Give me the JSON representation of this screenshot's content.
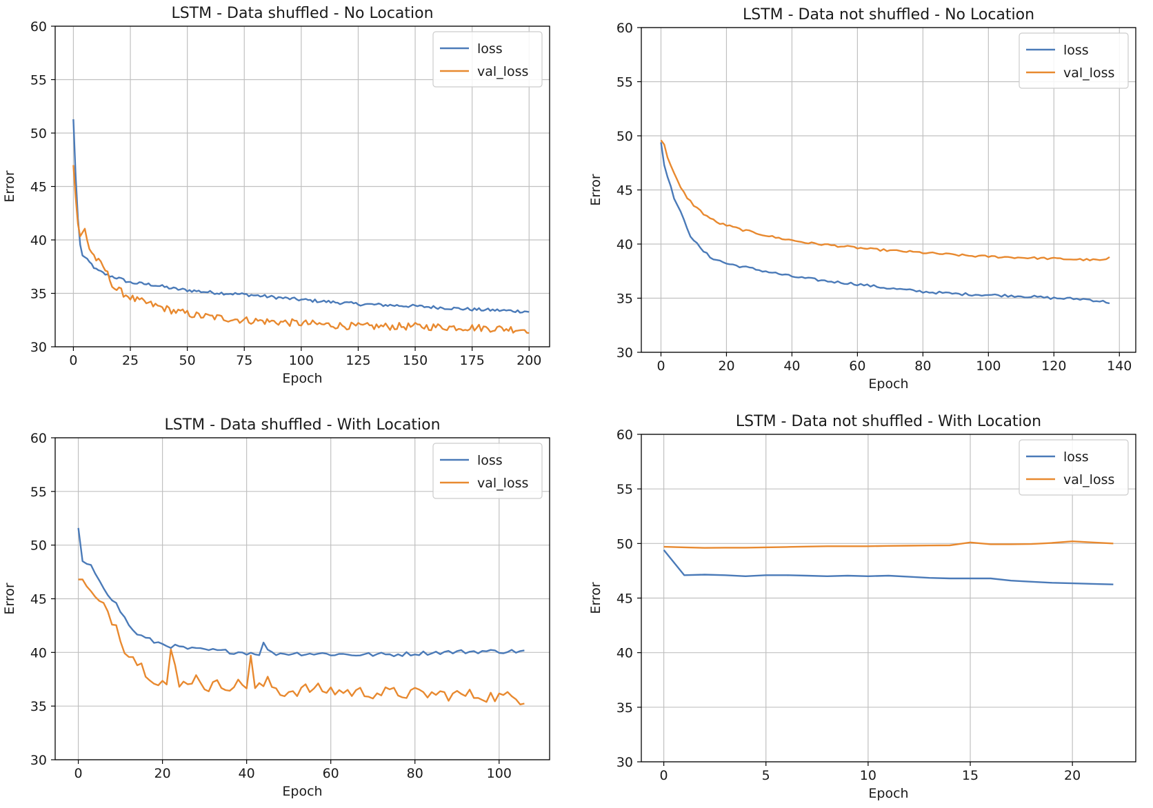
{
  "colors": {
    "loss": "#4a7ab8",
    "val_loss": "#e8892f",
    "grid": "#c0c0c0",
    "axis": "#000000"
  },
  "chart_data": [
    {
      "type": "line",
      "title": "LSTM - Data shuffled - No Location",
      "xlabel": "Epoch",
      "ylabel": "Error",
      "xlim": [
        -8,
        209
      ],
      "ylim": [
        30,
        60
      ],
      "xticks": [
        0,
        25,
        50,
        75,
        100,
        125,
        150,
        175,
        200
      ],
      "yticks": [
        30,
        35,
        40,
        45,
        50,
        55,
        60
      ],
      "grid": true,
      "legend": "upper right",
      "series": [
        {
          "name": "loss",
          "x_max": 200,
          "noise": 0.15,
          "points": [
            [
              0,
              51.3
            ],
            [
              1,
              46
            ],
            [
              2,
              42
            ],
            [
              3,
              39.5
            ],
            [
              4,
              38.6
            ],
            [
              6,
              38.1
            ],
            [
              8,
              37.7
            ],
            [
              10,
              37.2
            ],
            [
              15,
              36.7
            ],
            [
              20,
              36.4
            ],
            [
              25,
              36.0
            ],
            [
              35,
              35.8
            ],
            [
              45,
              35.4
            ],
            [
              60,
              35.1
            ],
            [
              75,
              34.9
            ],
            [
              100,
              34.4
            ],
            [
              125,
              34.0
            ],
            [
              150,
              33.8
            ],
            [
              175,
              33.5
            ],
            [
              200,
              33.3
            ]
          ]
        },
        {
          "name": "val_loss",
          "x_max": 200,
          "noise": 0.35,
          "points": [
            [
              0,
              47
            ],
            [
              1,
              44
            ],
            [
              2,
              41.5
            ],
            [
              3,
              40.2
            ],
            [
              5,
              41
            ],
            [
              7,
              39.2
            ],
            [
              10,
              38.2
            ],
            [
              14,
              37.2
            ],
            [
              18,
              35.5
            ],
            [
              22,
              35.0
            ],
            [
              27,
              34.4
            ],
            [
              35,
              33.9
            ],
            [
              45,
              33.3
            ],
            [
              55,
              32.9
            ],
            [
              75,
              32.5
            ],
            [
              100,
              32.2
            ],
            [
              125,
              31.9
            ],
            [
              150,
              31.9
            ],
            [
              175,
              31.8
            ],
            [
              200,
              31.6
            ]
          ]
        }
      ]
    },
    {
      "type": "line",
      "title": "LSTM - Data not shuffled - No Location",
      "xlabel": "Epoch",
      "ylabel": "Error",
      "xlim": [
        -6,
        145
      ],
      "ylim": [
        30,
        60
      ],
      "xticks": [
        0,
        20,
        40,
        60,
        80,
        100,
        120,
        140
      ],
      "yticks": [
        30,
        35,
        40,
        45,
        50,
        55,
        60
      ],
      "grid": true,
      "legend": "upper right",
      "series": [
        {
          "name": "loss",
          "x_max": 137,
          "noise": 0.12,
          "points": [
            [
              0,
              49.4
            ],
            [
              1,
              47.3
            ],
            [
              2,
              46.2
            ],
            [
              4,
              44.3
            ],
            [
              7,
              42.2
            ],
            [
              9,
              40.8
            ],
            [
              12,
              39.6
            ],
            [
              15,
              38.8
            ],
            [
              20,
              38.2
            ],
            [
              30,
              37.6
            ],
            [
              40,
              37.0
            ],
            [
              50,
              36.6
            ],
            [
              60,
              36.3
            ],
            [
              70,
              35.9
            ],
            [
              80,
              35.6
            ],
            [
              90,
              35.4
            ],
            [
              100,
              35.3
            ],
            [
              110,
              35.2
            ],
            [
              120,
              35.0
            ],
            [
              130,
              34.9
            ],
            [
              137,
              34.6
            ]
          ]
        },
        {
          "name": "val_loss",
          "x_max": 137,
          "noise": 0.1,
          "points": [
            [
              0,
              49.6
            ],
            [
              1,
              49.2
            ],
            [
              2,
              48.0
            ],
            [
              4,
              46.5
            ],
            [
              6,
              45.2
            ],
            [
              8,
              44.3
            ],
            [
              10,
              43.6
            ],
            [
              13,
              42.8
            ],
            [
              17,
              42.0
            ],
            [
              25,
              41.3
            ],
            [
              35,
              40.6
            ],
            [
              45,
              40.1
            ],
            [
              55,
              39.8
            ],
            [
              65,
              39.5
            ],
            [
              75,
              39.3
            ],
            [
              85,
              39.1
            ],
            [
              95,
              38.9
            ],
            [
              105,
              38.8
            ],
            [
              115,
              38.7
            ],
            [
              125,
              38.6
            ],
            [
              135,
              38.5
            ],
            [
              137,
              38.7
            ]
          ]
        }
      ]
    },
    {
      "type": "line",
      "title": "LSTM - Data shuffled - With Location",
      "xlabel": "Epoch",
      "ylabel": "Error",
      "xlim": [
        -5.5,
        112
      ],
      "ylim": [
        30,
        60
      ],
      "xticks": [
        0,
        20,
        40,
        60,
        80,
        100
      ],
      "yticks": [
        30,
        35,
        40,
        45,
        50,
        55,
        60
      ],
      "grid": true,
      "legend": "upper right",
      "series": [
        {
          "name": "loss",
          "x_max": 106,
          "noise": 0.2,
          "points": [
            [
              0,
              51.6
            ],
            [
              1,
              48.5
            ],
            [
              3,
              48.0
            ],
            [
              5,
              46.8
            ],
            [
              7,
              45.5
            ],
            [
              9,
              44.5
            ],
            [
              11,
              43.2
            ],
            [
              13,
              42.0
            ],
            [
              15,
              41.5
            ],
            [
              18,
              41.0
            ],
            [
              22,
              40.6
            ],
            [
              27,
              40.3
            ],
            [
              35,
              40.1
            ],
            [
              43,
              39.9
            ],
            [
              44,
              40.8
            ],
            [
              46,
              39.9
            ],
            [
              55,
              39.9
            ],
            [
              65,
              39.8
            ],
            [
              75,
              39.8
            ],
            [
              85,
              40.0
            ],
            [
              95,
              40.1
            ],
            [
              106,
              40.1
            ]
          ]
        },
        {
          "name": "val_loss",
          "x_max": 106,
          "noise": 0.6,
          "points": [
            [
              0,
              46.8
            ],
            [
              1,
              46.8
            ],
            [
              3,
              45.5
            ],
            [
              5,
              44.5
            ],
            [
              7,
              43.8
            ],
            [
              9,
              42.5
            ],
            [
              11,
              40.5
            ],
            [
              13,
              39.6
            ],
            [
              15,
              38.7
            ],
            [
              18,
              37.6
            ],
            [
              21,
              37.1
            ],
            [
              22,
              40.0
            ],
            [
              24,
              36.8
            ],
            [
              27,
              37.6
            ],
            [
              29,
              37.6
            ],
            [
              30,
              36.8
            ],
            [
              35,
              37.0
            ],
            [
              40,
              37.0
            ],
            [
              41,
              39.8
            ],
            [
              42,
              36.5
            ],
            [
              45,
              37.2
            ],
            [
              48,
              36.3
            ],
            [
              55,
              36.6
            ],
            [
              65,
              36.3
            ],
            [
              75,
              36.2
            ],
            [
              85,
              36.1
            ],
            [
              95,
              36.0
            ],
            [
              106,
              35.7
            ]
          ]
        }
      ]
    },
    {
      "type": "line",
      "title": "LSTM - Data not shuffled - With Location",
      "xlabel": "Epoch",
      "ylabel": "Error",
      "xlim": [
        -1.1,
        23.1
      ],
      "ylim": [
        30,
        60
      ],
      "xticks": [
        0,
        5,
        10,
        15,
        20
      ],
      "yticks": [
        30,
        35,
        40,
        45,
        50,
        55,
        60
      ],
      "grid": true,
      "legend": "upper right",
      "series": [
        {
          "name": "loss",
          "x_max": 22,
          "noise": 0,
          "points": [
            [
              0,
              49.4
            ],
            [
              1,
              47.1
            ],
            [
              2,
              47.15
            ],
            [
              3,
              47.1
            ],
            [
              4,
              47.0
            ],
            [
              5,
              47.1
            ],
            [
              6,
              47.1
            ],
            [
              7,
              47.05
            ],
            [
              8,
              47.0
            ],
            [
              9,
              47.05
            ],
            [
              10,
              47.0
            ],
            [
              11,
              47.05
            ],
            [
              12,
              46.95
            ],
            [
              13,
              46.85
            ],
            [
              14,
              46.8
            ],
            [
              15,
              46.8
            ],
            [
              16,
              46.8
            ],
            [
              17,
              46.6
            ],
            [
              18,
              46.5
            ],
            [
              19,
              46.4
            ],
            [
              20,
              46.35
            ],
            [
              21,
              46.3
            ],
            [
              22,
              46.25
            ]
          ]
        },
        {
          "name": "val_loss",
          "x_max": 22,
          "noise": 0,
          "points": [
            [
              0,
              49.7
            ],
            [
              1,
              49.65
            ],
            [
              2,
              49.6
            ],
            [
              3,
              49.62
            ],
            [
              4,
              49.62
            ],
            [
              5,
              49.65
            ],
            [
              6,
              49.68
            ],
            [
              7,
              49.72
            ],
            [
              8,
              49.75
            ],
            [
              9,
              49.75
            ],
            [
              10,
              49.75
            ],
            [
              11,
              49.78
            ],
            [
              12,
              49.8
            ],
            [
              13,
              49.82
            ],
            [
              14,
              49.83
            ],
            [
              15,
              50.1
            ],
            [
              16,
              49.93
            ],
            [
              17,
              49.93
            ],
            [
              18,
              49.95
            ],
            [
              19,
              50.05
            ],
            [
              20,
              50.2
            ],
            [
              21,
              50.1
            ],
            [
              22,
              50.0
            ]
          ]
        }
      ]
    }
  ]
}
